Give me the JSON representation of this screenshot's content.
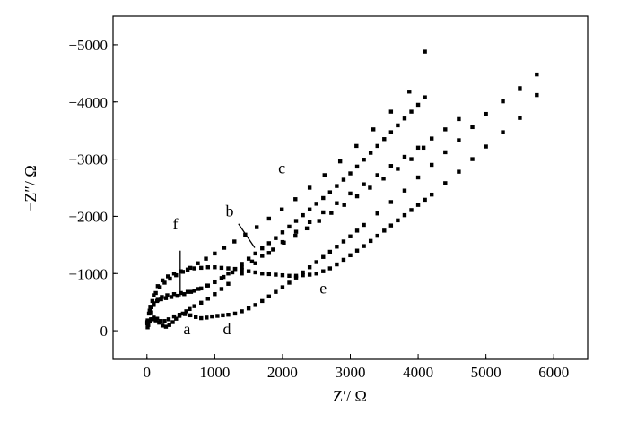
{
  "chart_data": {
    "type": "scatter",
    "title": "",
    "xlabel": "Z′/ Ω",
    "ylabel": "−Z″/ Ω",
    "xlim": [
      -500,
      6500
    ],
    "ylim": [
      -500,
      5500
    ],
    "x_ticks": [
      "0",
      "1000",
      "2000",
      "3000",
      "4000",
      "5000",
      "6000"
    ],
    "y_ticks": [
      "0",
      "−1000",
      "−2000",
      "−3000",
      "−4000",
      "−5000"
    ],
    "x_tick_values": [
      0,
      1000,
      2000,
      3000,
      4000,
      5000,
      6000
    ],
    "y_tick_values": [
      0,
      1000,
      2000,
      3000,
      4000,
      5000
    ],
    "grid": false,
    "marker_color": "#000000",
    "series": [
      {
        "name": "a",
        "label_pos": [
          590,
          -60
        ],
        "x": [
          10,
          40,
          80,
          130,
          180,
          230,
          280,
          330,
          380,
          430,
          480,
          530,
          580,
          630,
          700,
          800,
          900,
          1000,
          1100,
          1200,
          1400,
          1600,
          1800,
          2000,
          2200,
          2400,
          2600,
          2800,
          3000,
          3200,
          3400,
          3600,
          3800,
          4000,
          4200,
          4400,
          4600
        ],
        "y": [
          60,
          160,
          200,
          180,
          140,
          90,
          70,
          100,
          150,
          210,
          260,
          300,
          340,
          380,
          430,
          490,
          560,
          640,
          730,
          820,
          1000,
          1180,
          1360,
          1550,
          1730,
          1900,
          2070,
          2230,
          2400,
          2560,
          2720,
          2880,
          3040,
          3200,
          3360,
          3520,
          3700
        ]
      },
      {
        "name": "b",
        "label_pos": [
          1220,
          2000
        ],
        "x": [
          10,
          50,
          100,
          160,
          220,
          300,
          400,
          500,
          600,
          700,
          800,
          900,
          1000,
          1100,
          1200,
          1300,
          1400,
          1500,
          1600,
          1700,
          1800,
          1900,
          2000,
          2100,
          2200,
          2300,
          2400,
          2500,
          2600,
          2700,
          2800,
          2900,
          3000,
          3100,
          3200,
          3300,
          3400,
          3500,
          3600,
          3700,
          3800,
          3900,
          4000,
          4100
        ],
        "y": [
          140,
          320,
          450,
          540,
          590,
          620,
          640,
          660,
          680,
          700,
          740,
          790,
          850,
          920,
          1000,
          1080,
          1170,
          1260,
          1350,
          1440,
          1530,
          1620,
          1720,
          1820,
          1920,
          2020,
          2120,
          2220,
          2320,
          2420,
          2530,
          2640,
          2750,
          2870,
          2990,
          3110,
          3230,
          3350,
          3470,
          3590,
          3710,
          3830,
          3950,
          4080
        ]
      },
      {
        "name": "c",
        "label_pos": [
          1990,
          2750
        ],
        "x": [
          5,
          40,
          80,
          130,
          190,
          260,
          340,
          430,
          530,
          640,
          750,
          870,
          1000,
          1140,
          1290,
          1450,
          1620,
          1800,
          1990,
          2190,
          2400,
          2620,
          2850,
          3090,
          3340,
          3600,
          3870,
          4100
        ],
        "y": [
          150,
          350,
          520,
          660,
          760,
          840,
          910,
          970,
          1030,
          1100,
          1180,
          1260,
          1350,
          1450,
          1560,
          1680,
          1810,
          1960,
          2120,
          2300,
          2500,
          2720,
          2960,
          3230,
          3520,
          3830,
          4180,
          4880
        ]
      },
      {
        "name": "d",
        "label_pos": [
          1180,
          -60
        ],
        "x": [
          20,
          60,
          100,
          150,
          200,
          260,
          320,
          400,
          480,
          560,
          640,
          720,
          800,
          880,
          960,
          1040,
          1120,
          1200,
          1300,
          1400,
          1500,
          1600,
          1700,
          1800,
          1900,
          2000,
          2100,
          2200,
          2300,
          2400,
          2500,
          2600,
          2700,
          2800,
          2900,
          3000,
          3100,
          3200,
          3400,
          3600,
          3800,
          4000,
          4200,
          4400,
          4600,
          4800,
          5000,
          5250,
          5500,
          5750
        ],
        "y": [
          100,
          200,
          230,
          210,
          170,
          170,
          200,
          250,
          280,
          290,
          270,
          240,
          220,
          230,
          250,
          260,
          270,
          280,
          300,
          340,
          390,
          450,
          520,
          600,
          680,
          760,
          840,
          930,
          1020,
          1110,
          1200,
          1290,
          1380,
          1470,
          1560,
          1650,
          1750,
          1850,
          2050,
          2250,
          2450,
          2680,
          2900,
          3120,
          3330,
          3560,
          3790,
          4010,
          4240,
          4480
        ]
      },
      {
        "name": "e",
        "label_pos": [
          2600,
          650
        ],
        "x": [
          10,
          50,
          100,
          160,
          230,
          310,
          400,
          500,
          600,
          700,
          800,
          900,
          1000,
          1100,
          1200,
          1300,
          1400,
          1500,
          1600,
          1700,
          1800,
          1900,
          2000,
          2100,
          2200,
          2300,
          2400,
          2500,
          2600,
          2700,
          2800,
          2900,
          3000,
          3100,
          3200,
          3300,
          3400,
          3500,
          3600,
          3700,
          3800,
          3900,
          4000,
          4100,
          4200,
          4400,
          4600,
          4800,
          5000,
          5250,
          5500,
          5750
        ],
        "y": [
          180,
          420,
          620,
          780,
          880,
          950,
          1000,
          1040,
          1070,
          1090,
          1100,
          1110,
          1110,
          1100,
          1090,
          1080,
          1060,
          1040,
          1020,
          1000,
          990,
          980,
          970,
          960,
          960,
          970,
          980,
          1000,
          1040,
          1090,
          1160,
          1240,
          1320,
          1400,
          1480,
          1570,
          1660,
          1750,
          1840,
          1930,
          2020,
          2110,
          2200,
          2290,
          2380,
          2580,
          2780,
          3000,
          3220,
          3470,
          3720,
          4120
        ]
      },
      {
        "name": "f",
        "label_pos": [
          420,
          1770
        ],
        "x": [
          5,
          30,
          60,
          100,
          150,
          210,
          280,
          360,
          450,
          550,
          650,
          760,
          880,
          1000,
          1130,
          1260,
          1400,
          1550,
          1700,
          1860,
          2020,
          2190,
          2360,
          2540,
          2720,
          2910,
          3100,
          3290,
          3490,
          3700,
          3900,
          4080
        ],
        "y": [
          130,
          300,
          410,
          480,
          520,
          550,
          570,
          590,
          610,
          640,
          680,
          730,
          790,
          860,
          940,
          1020,
          1110,
          1210,
          1310,
          1420,
          1540,
          1660,
          1790,
          1920,
          2060,
          2200,
          2350,
          2500,
          2660,
          2830,
          3000,
          3200
        ]
      }
    ],
    "leader_lines": [
      {
        "series": "f",
        "from": [
          490,
          1400
        ],
        "to": [
          490,
          600
        ]
      },
      {
        "series": "b",
        "from": [
          1350,
          1870
        ],
        "to": [
          1590,
          1450
        ]
      }
    ]
  }
}
